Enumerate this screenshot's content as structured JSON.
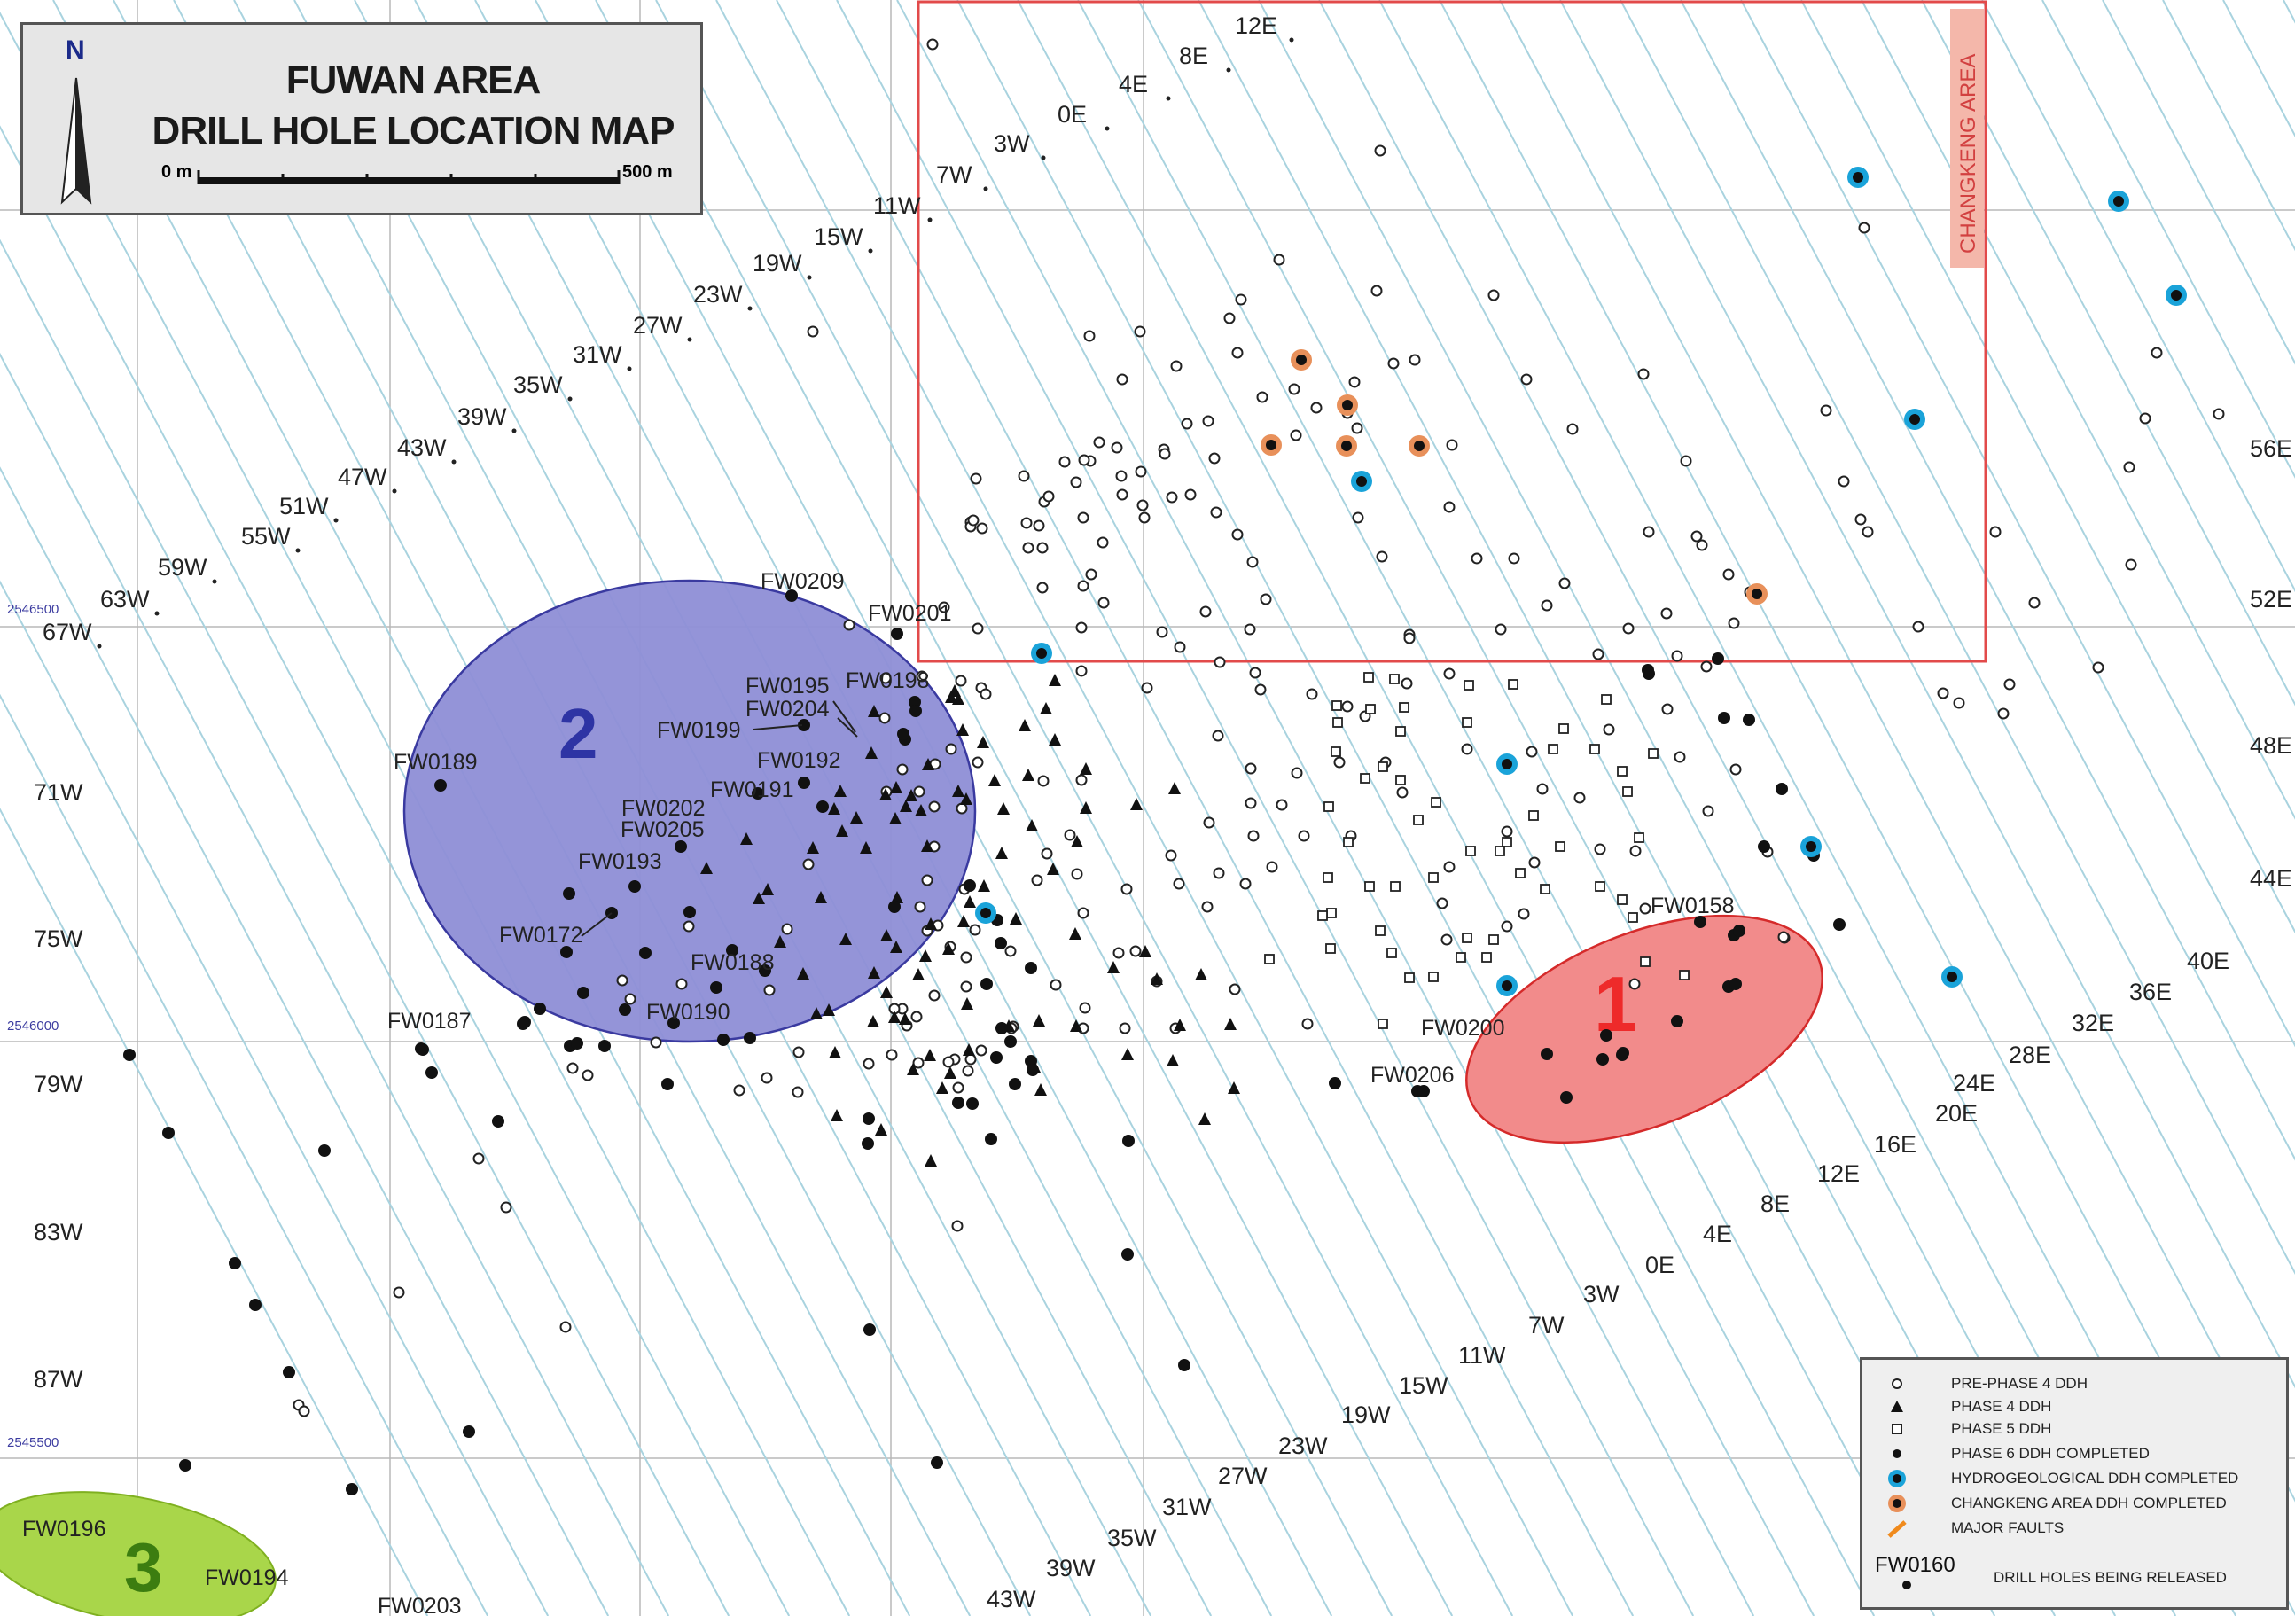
{
  "title": {
    "line1": "FUWAN AREA",
    "line2": "DRILL HOLE LOCATION MAP",
    "north": "N",
    "scale_start": "0 m",
    "scale_end": "500 m"
  },
  "changkeng_label": "CHANGKENG AREA",
  "coordinates": [
    "2546500",
    "2546000",
    "2545500"
  ],
  "zones": [
    {
      "label": "1",
      "color": "#ee2a2a"
    },
    {
      "label": "2",
      "color": "#2e34a4"
    },
    {
      "label": "3",
      "color": "#3c7d10"
    }
  ],
  "section_labels_top": [
    "12E",
    "8E",
    "4E",
    "0E",
    "3W",
    "7W",
    "11W",
    "15W",
    "19W",
    "23W",
    "27W",
    "31W",
    "35W",
    "39W",
    "43W",
    "47W",
    "51W",
    "55W",
    "59W",
    "63W",
    "67W"
  ],
  "section_labels_left": [
    "71W",
    "75W",
    "79W",
    "83W",
    "87W"
  ],
  "section_labels_right": [
    "56E",
    "52E",
    "48E",
    "44E",
    "40E",
    "36E",
    "32E",
    "28E",
    "24E",
    "20E",
    "16E",
    "12E",
    "8E",
    "4E",
    "0E",
    "3W",
    "7W",
    "11W",
    "15W",
    "19W",
    "23W",
    "27W",
    "31W",
    "35W",
    "39W",
    "43W"
  ],
  "hole_labels": [
    "FW0209",
    "FW0201",
    "FW0195",
    "FW0198",
    "FW0204",
    "FW0199",
    "FW0192",
    "FW0189",
    "FW0191",
    "FW0202",
    "FW0205",
    "FW0193",
    "FW0172",
    "FW0188",
    "FW0190",
    "FW0187",
    "FW0158",
    "FW0200",
    "FW0206",
    "FW0196",
    "FW0194",
    "FW0203"
  ],
  "legend": {
    "items": [
      {
        "label": "PRE-PHASE 4 DDH",
        "icon": "open-circle-icon"
      },
      {
        "label": "PHASE 4 DDH",
        "icon": "triangle-icon"
      },
      {
        "label": "PHASE 5 DDH",
        "icon": "open-square-icon"
      },
      {
        "label": "PHASE 6 DDH COMPLETED",
        "icon": "filled-circle-icon"
      },
      {
        "label": "HYDROGEOLOGICAL DDH COMPLETED",
        "icon": "blue-ring-dot-icon"
      },
      {
        "label": "CHANGKENG AREA DDH COMPLETED",
        "icon": "orange-ring-dot-icon"
      },
      {
        "label": "MAJOR FAULTS",
        "icon": "orange-fault-line-icon"
      }
    ],
    "code": "FW0160",
    "code_note": "DRILL HOLES BEING RELEASED"
  },
  "colors": {
    "section_line": "#a9d3df",
    "grid_line": "#b8b8b8",
    "zone1_fill": "#f28b8b",
    "zone2_fill": "#8e8ed6",
    "zone3_fill": "#a9d64a",
    "changkeng_border": "#e24a4a",
    "hydro_ring": "#1aa3d9",
    "changkeng_ring": "#e8905a"
  }
}
